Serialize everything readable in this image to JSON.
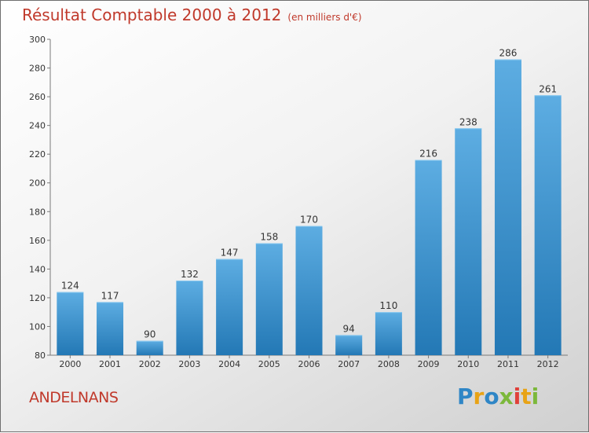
{
  "title": "Résultat Comptable 2000 à 2012",
  "subtitle": "(en milliers d'€)",
  "location": "ANDELNANS",
  "logo": {
    "letters": [
      "P",
      "r",
      "o",
      "x",
      "i",
      "t",
      "i"
    ]
  },
  "colors": {
    "bar_top": "#5dade2",
    "bar_bottom": "#2378b5",
    "title": "#c0392b"
  },
  "chart_data": {
    "type": "bar",
    "title": "Résultat Comptable 2000 à 2012",
    "subtitle": "(en milliers d'€)",
    "xlabel": "",
    "ylabel": "",
    "categories": [
      "2000",
      "2001",
      "2002",
      "2003",
      "2004",
      "2005",
      "2006",
      "2007",
      "2008",
      "2009",
      "2010",
      "2011",
      "2012"
    ],
    "values": [
      124,
      117,
      90,
      132,
      147,
      158,
      170,
      94,
      110,
      216,
      238,
      286,
      261
    ],
    "ylim": [
      80,
      300
    ],
    "yticks": [
      80,
      100,
      120,
      140,
      160,
      180,
      200,
      220,
      240,
      260,
      280,
      300
    ],
    "grid": false
  }
}
